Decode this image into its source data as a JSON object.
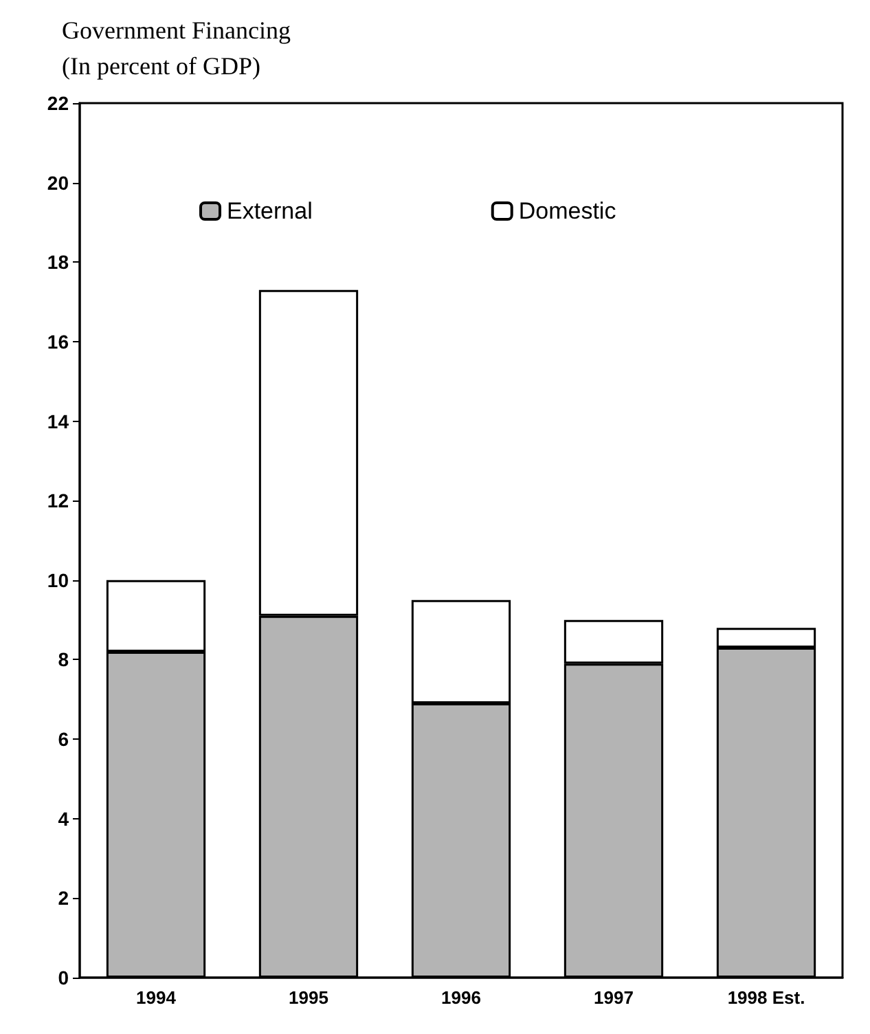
{
  "chart_data": {
    "type": "bar",
    "title": "Government Financing",
    "subtitle": "(In percent of GDP)",
    "categories": [
      "1994",
      "1995",
      "1996",
      "1997",
      "1998 Est."
    ],
    "series": [
      {
        "name": "External",
        "color": "#b4b4b4",
        "values": [
          8.2,
          9.1,
          6.9,
          7.9,
          8.3
        ]
      },
      {
        "name": "Domestic",
        "color": "#ffffff",
        "values": [
          1.8,
          8.2,
          2.6,
          1.1,
          0.5
        ]
      }
    ],
    "stacked": true,
    "ylim": [
      0,
      22
    ],
    "yticks": [
      0,
      2,
      4,
      6,
      8,
      10,
      12,
      14,
      16,
      18,
      20,
      22
    ],
    "grid": false,
    "legend": "top"
  }
}
